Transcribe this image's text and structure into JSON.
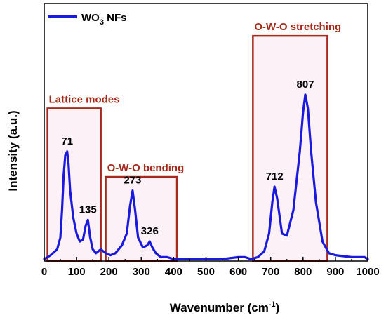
{
  "colors": {
    "series": "#1a1adc",
    "region_box": "#a52a1e",
    "region_fill": "#fbe6f3",
    "region_text": "#a52a1e",
    "axis": "#000000"
  },
  "chart_data": {
    "type": "line",
    "title": "",
    "xlabel": "Wavenumber (cm-1)",
    "xlabel_main": "Wavenumber (cm",
    "xlabel_sup": "-1",
    "xlabel_close": ")",
    "ylabel": "Intensity (a.u.)",
    "xlim": [
      0,
      1000
    ],
    "ylim": [
      0,
      100
    ],
    "grid": false,
    "legend_position": "top-left",
    "x_ticks": [
      0,
      100,
      200,
      300,
      400,
      500,
      600,
      700,
      800,
      900,
      1000
    ],
    "x_tick_labels": [
      "0",
      "100",
      "200",
      "300",
      "400",
      "500",
      "600",
      "700",
      "800",
      "900",
      "1000"
    ],
    "series": [
      {
        "name": "WO3 NFs",
        "legend_main": "WO",
        "legend_sub": "3",
        "legend_rest": " NFs",
        "x": [
          0,
          20,
          40,
          50,
          55,
          60,
          65,
          71,
          75,
          80,
          90,
          100,
          110,
          120,
          128,
          135,
          142,
          150,
          160,
          175,
          190,
          205,
          220,
          240,
          255,
          265,
          273,
          281,
          290,
          305,
          318,
          326,
          334,
          345,
          360,
          380,
          400,
          450,
          500,
          550,
          600,
          620,
          640,
          660,
          680,
          695,
          705,
          712,
          720,
          735,
          750,
          770,
          790,
          800,
          807,
          815,
          825,
          840,
          860,
          880,
          900,
          950,
          990,
          1000
        ],
        "y": [
          1,
          3,
          6,
          12,
          26,
          44,
          54,
          56,
          50,
          36,
          22,
          14,
          10,
          11,
          18,
          21,
          12,
          6,
          4,
          6,
          4,
          3,
          4,
          8,
          14,
          28,
          36,
          26,
          12,
          7,
          8,
          10,
          7,
          4,
          2,
          2,
          1,
          1,
          1,
          1,
          2,
          2,
          1,
          2,
          5,
          14,
          30,
          38,
          32,
          14,
          13,
          26,
          56,
          76,
          85,
          78,
          56,
          30,
          10,
          4,
          3,
          2,
          2,
          1
        ]
      }
    ],
    "peak_labels": [
      {
        "x": 71,
        "y": 56,
        "label": "71"
      },
      {
        "x": 135,
        "y": 21,
        "label": "135"
      },
      {
        "x": 273,
        "y": 36,
        "label": "273"
      },
      {
        "x": 326,
        "y": 10,
        "label": "326"
      },
      {
        "x": 712,
        "y": 38,
        "label": "712"
      },
      {
        "x": 807,
        "y": 85,
        "label": "807"
      }
    ],
    "regions": [
      {
        "label": "Lattice modes",
        "x0": 10,
        "x1": 175,
        "ytop": 78
      },
      {
        "label": "O-W-O bending",
        "x0": 190,
        "x1": 410,
        "ytop": 43
      },
      {
        "label": "O-W-O stretching",
        "x0": 645,
        "x1": 875,
        "ytop": 115
      }
    ]
  }
}
